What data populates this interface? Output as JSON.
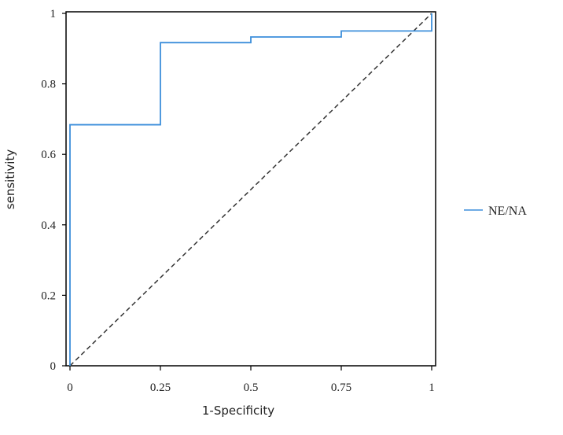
{
  "chart_data": {
    "type": "line",
    "xlabel": "1-Specificity",
    "ylabel": "sensitivity",
    "xlim": [
      0,
      1
    ],
    "ylim": [
      0,
      1
    ],
    "x_ticks": [
      0,
      0.25,
      0.5,
      0.75,
      1
    ],
    "y_ticks": [
      0,
      0.2,
      0.4,
      0.6,
      0.8,
      1
    ],
    "grid": false,
    "legend_position": "right",
    "series": [
      {
        "name": "NE/NA",
        "color": "#3d8fdb",
        "x": [
          0,
          0,
          0.25,
          0.25,
          0.5,
          0.5,
          0.75,
          0.75,
          1,
          1
        ],
        "y": [
          0,
          0.684,
          0.684,
          0.917,
          0.917,
          0.933,
          0.933,
          0.95,
          0.95,
          1
        ]
      }
    ],
    "reference_line": {
      "x": [
        0,
        1
      ],
      "y": [
        0,
        1
      ],
      "style": "dashed",
      "color": "#333333"
    }
  }
}
